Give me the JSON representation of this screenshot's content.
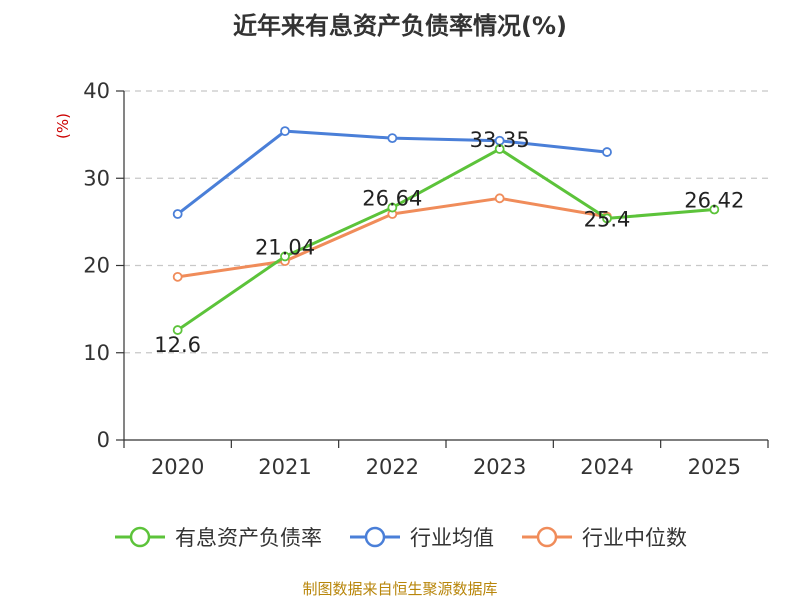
{
  "chart_data": {
    "type": "line",
    "title": "近年来有息资产负债率情况(%)",
    "ylabel": "(%)",
    "categories": [
      "2020",
      "2021",
      "2022",
      "2023",
      "2024",
      "2025"
    ],
    "y_ticks": [
      "0",
      "10",
      "20",
      "30",
      "40"
    ],
    "ylim": [
      0,
      40
    ],
    "grid": true,
    "legend_position": "bottom",
    "series": [
      {
        "name": "有息资产负债率",
        "color": "#5cc33a",
        "values": [
          12.6,
          21.04,
          26.64,
          33.35,
          25.4,
          26.42
        ],
        "labels": [
          "12.6",
          "21.04",
          "26.64",
          "33.35",
          "25.4",
          "26.42"
        ]
      },
      {
        "name": "行业均值",
        "color": "#4a7fd8",
        "values": [
          25.9,
          35.4,
          34.6,
          34.3,
          33.0,
          null
        ]
      },
      {
        "name": "行业中位数",
        "color": "#f08c5a",
        "values": [
          18.7,
          20.5,
          25.9,
          27.7,
          25.6,
          null
        ]
      }
    ]
  },
  "source": "制图数据来自恒生聚源数据库"
}
